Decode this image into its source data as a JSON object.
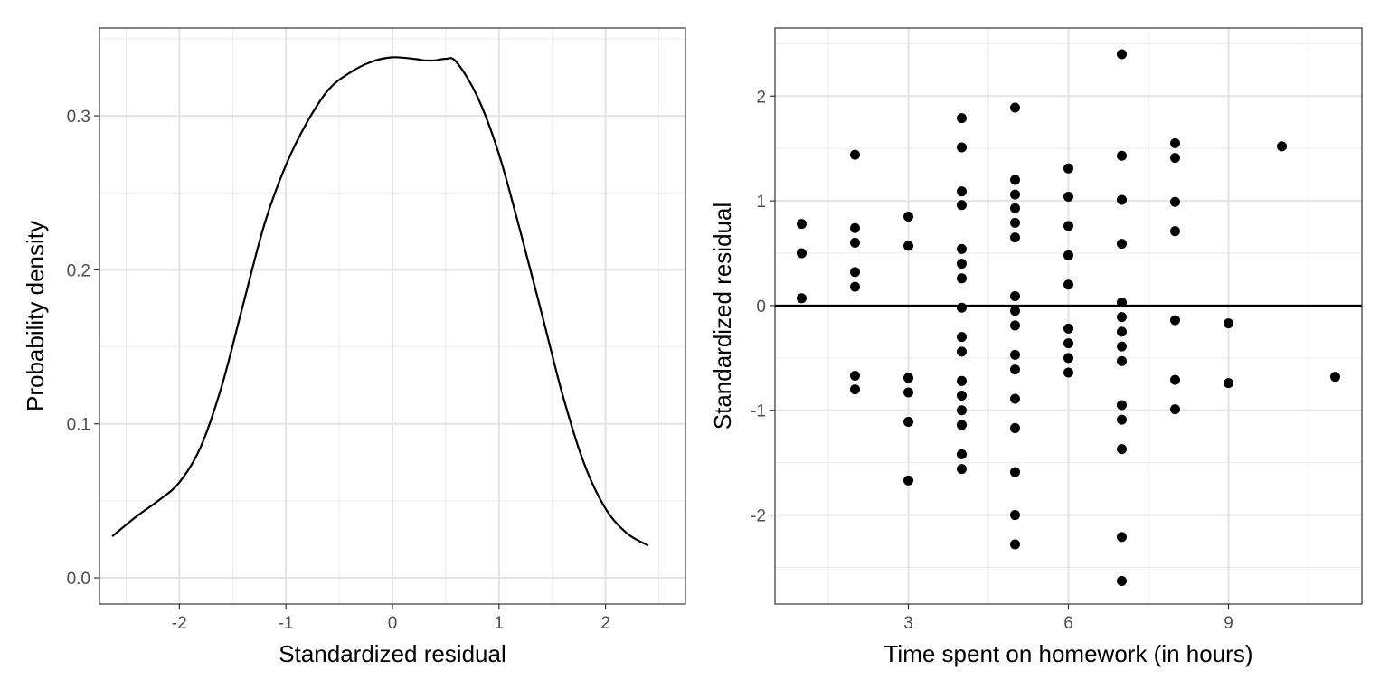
{
  "chart_data": [
    {
      "type": "line",
      "title": "",
      "xlabel": "Standardized residual",
      "ylabel": "Probability density",
      "xlim": [
        -2.75,
        2.75
      ],
      "ylim": [
        -0.017,
        0.357
      ],
      "x_ticks": [
        -2,
        -1,
        0,
        1,
        2
      ],
      "x_tick_labels": [
        "-2",
        "-1",
        "0",
        "1",
        "2"
      ],
      "y_ticks": [
        0.0,
        0.1,
        0.2,
        0.3
      ],
      "y_tick_labels": [
        "0.0",
        "0.1",
        "0.2",
        "0.3"
      ],
      "grid": true,
      "series": [
        {
          "x": [
            -2.63,
            -2.4,
            -2.2,
            -2.0,
            -1.8,
            -1.6,
            -1.4,
            -1.2,
            -1.0,
            -0.8,
            -0.6,
            -0.4,
            -0.2,
            0.0,
            0.2,
            0.3,
            0.4,
            0.5,
            0.6,
            0.8,
            1.0,
            1.2,
            1.4,
            1.6,
            1.8,
            2.0,
            2.2,
            2.4
          ],
          "y": [
            0.027,
            0.04,
            0.05,
            0.062,
            0.085,
            0.125,
            0.178,
            0.23,
            0.268,
            0.296,
            0.317,
            0.328,
            0.335,
            0.338,
            0.337,
            0.336,
            0.336,
            0.337,
            0.335,
            0.312,
            0.275,
            0.225,
            0.172,
            0.118,
            0.074,
            0.045,
            0.029,
            0.021
          ]
        }
      ]
    },
    {
      "type": "scatter",
      "title": "",
      "xlabel": "Time spent on homework (in hours)",
      "ylabel": "Standardized residual",
      "xlim": [
        0.5,
        11.5
      ],
      "ylim": [
        -2.85,
        2.65
      ],
      "x_ticks": [
        3,
        6,
        9
      ],
      "x_tick_labels": [
        "3",
        "6",
        "9"
      ],
      "y_ticks": [
        -2,
        -1,
        0,
        1,
        2
      ],
      "y_tick_labels": [
        "-2",
        "-1",
        "0",
        "1",
        "2"
      ],
      "grid": true,
      "reference_line_y": 0,
      "points": [
        [
          1,
          0.78
        ],
        [
          1,
          0.5
        ],
        [
          1,
          0.07
        ],
        [
          2,
          1.44
        ],
        [
          2,
          0.74
        ],
        [
          2,
          0.6
        ],
        [
          2,
          0.32
        ],
        [
          2,
          0.18
        ],
        [
          2,
          -0.67
        ],
        [
          2,
          -0.8
        ],
        [
          3,
          0.85
        ],
        [
          3,
          0.57
        ],
        [
          3,
          -0.69
        ],
        [
          3,
          -0.83
        ],
        [
          3,
          -1.11
        ],
        [
          3,
          -1.67
        ],
        [
          4,
          1.79
        ],
        [
          4,
          1.51
        ],
        [
          4,
          1.09
        ],
        [
          4,
          0.96
        ],
        [
          4,
          0.54
        ],
        [
          4,
          0.4
        ],
        [
          4,
          0.26
        ],
        [
          4,
          -0.02
        ],
        [
          4,
          -0.3
        ],
        [
          4,
          -0.44
        ],
        [
          4,
          -0.72
        ],
        [
          4,
          -0.86
        ],
        [
          4,
          -1.0
        ],
        [
          4,
          -1.14
        ],
        [
          4,
          -1.42
        ],
        [
          4,
          -1.56
        ],
        [
          5,
          1.89
        ],
        [
          5,
          1.2
        ],
        [
          5,
          1.06
        ],
        [
          5,
          0.93
        ],
        [
          5,
          0.79
        ],
        [
          5,
          0.65
        ],
        [
          5,
          0.09
        ],
        [
          5,
          -0.05
        ],
        [
          5,
          -0.19
        ],
        [
          5,
          -0.47
        ],
        [
          5,
          -0.61
        ],
        [
          5,
          -0.89
        ],
        [
          5,
          -1.17
        ],
        [
          5,
          -1.59
        ],
        [
          5,
          -2.0
        ],
        [
          5,
          -2.28
        ],
        [
          6,
          1.31
        ],
        [
          6,
          1.04
        ],
        [
          6,
          0.76
        ],
        [
          6,
          0.48
        ],
        [
          6,
          0.2
        ],
        [
          6,
          -0.22
        ],
        [
          6,
          -0.36
        ],
        [
          6,
          -0.5
        ],
        [
          6,
          -0.64
        ],
        [
          7,
          2.4
        ],
        [
          7,
          1.43
        ],
        [
          7,
          1.01
        ],
        [
          7,
          0.59
        ],
        [
          7,
          0.03
        ],
        [
          7,
          -0.11
        ],
        [
          7,
          -0.25
        ],
        [
          7,
          -0.39
        ],
        [
          7,
          -0.53
        ],
        [
          7,
          -0.95
        ],
        [
          7,
          -1.09
        ],
        [
          7,
          -1.37
        ],
        [
          7,
          -2.21
        ],
        [
          7,
          -2.63
        ],
        [
          8,
          1.55
        ],
        [
          8,
          1.41
        ],
        [
          8,
          0.99
        ],
        [
          8,
          0.71
        ],
        [
          8,
          -0.14
        ],
        [
          8,
          -0.71
        ],
        [
          8,
          -0.99
        ],
        [
          9,
          -0.17
        ],
        [
          9,
          -0.74
        ],
        [
          10,
          1.52
        ],
        [
          11,
          -0.68
        ]
      ]
    }
  ]
}
